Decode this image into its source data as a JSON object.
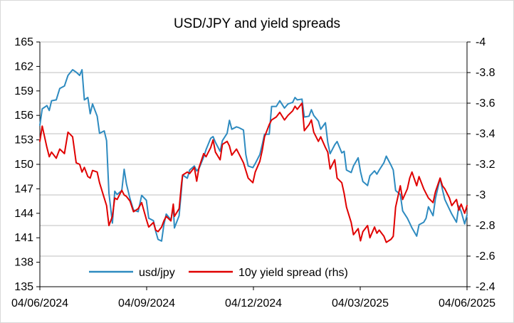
{
  "chart_data": {
    "type": "line",
    "title": "USD/JPY and yield spreads",
    "x_ticks": [
      "04/06/2024",
      "04/09/2024",
      "04/12/2024",
      "04/03/2025",
      "04/06/2025"
    ],
    "y_left": {
      "min": 135,
      "max": 165,
      "ticks": [
        "135",
        "138",
        "141",
        "144",
        "147",
        "150",
        "153",
        "156",
        "159",
        "162",
        "165"
      ]
    },
    "y_right": {
      "min": -4.0,
      "max": -2.4,
      "ticks": [
        "-4",
        "-3.8",
        "-3.6",
        "-3.4",
        "-3.2",
        "-3",
        "-2.8",
        "-2.6",
        "-2.4"
      ],
      "inverted": true
    },
    "grid": true,
    "legend_position": "bottom-inside",
    "series": [
      {
        "name": "usd/jpy",
        "axis": "left",
        "color": "#2e8bc0",
        "points": [
          [
            "2024-06-04",
            154.8
          ],
          [
            "2024-06-06",
            156.8
          ],
          [
            "2024-06-10",
            157.2
          ],
          [
            "2024-06-12",
            156.6
          ],
          [
            "2024-06-14",
            157.8
          ],
          [
            "2024-06-18",
            157.9
          ],
          [
            "2024-06-21",
            159.3
          ],
          [
            "2024-06-25",
            159.6
          ],
          [
            "2024-06-28",
            160.9
          ],
          [
            "2024-07-02",
            161.6
          ],
          [
            "2024-07-05",
            161.3
          ],
          [
            "2024-07-08",
            160.9
          ],
          [
            "2024-07-10",
            161.6
          ],
          [
            "2024-07-12",
            157.9
          ],
          [
            "2024-07-15",
            158.2
          ],
          [
            "2024-07-17",
            156.2
          ],
          [
            "2024-07-19",
            157.4
          ],
          [
            "2024-07-23",
            155.9
          ],
          [
            "2024-07-25",
            153.8
          ],
          [
            "2024-07-29",
            154.1
          ],
          [
            "2024-07-31",
            152.9
          ],
          [
            "2024-08-02",
            146.5
          ],
          [
            "2024-08-05",
            142.8
          ],
          [
            "2024-08-07",
            146.7
          ],
          [
            "2024-08-09",
            146.3
          ],
          [
            "2024-08-13",
            146.8
          ],
          [
            "2024-08-15",
            149.4
          ],
          [
            "2024-08-17",
            147.6
          ],
          [
            "2024-08-20",
            145.8
          ],
          [
            "2024-08-23",
            144.4
          ],
          [
            "2024-08-27",
            144.2
          ],
          [
            "2024-08-30",
            146.2
          ],
          [
            "2024-09-03",
            145.6
          ],
          [
            "2024-09-05",
            143.4
          ],
          [
            "2024-09-09",
            143.1
          ],
          [
            "2024-09-11",
            141.8
          ],
          [
            "2024-09-13",
            140.8
          ],
          [
            "2024-09-16",
            140.6
          ],
          [
            "2024-09-18",
            142.6
          ],
          [
            "2024-09-20",
            143.9
          ],
          [
            "2024-09-24",
            143.2
          ],
          [
            "2024-09-26",
            144.8
          ],
          [
            "2024-09-27",
            142.2
          ],
          [
            "2024-10-01",
            143.7
          ],
          [
            "2024-10-03",
            146.9
          ],
          [
            "2024-10-04",
            148.7
          ],
          [
            "2024-10-08",
            148.3
          ],
          [
            "2024-10-10",
            149.3
          ],
          [
            "2024-10-14",
            149.8
          ],
          [
            "2024-10-16",
            149.2
          ],
          [
            "2024-10-18",
            149.5
          ],
          [
            "2024-10-22",
            150.9
          ],
          [
            "2024-10-24",
            151.8
          ],
          [
            "2024-10-28",
            153.2
          ],
          [
            "2024-10-30",
            153.4
          ],
          [
            "2024-11-01",
            152.7
          ],
          [
            "2024-11-05",
            151.6
          ],
          [
            "2024-11-07",
            152.9
          ],
          [
            "2024-11-11",
            153.8
          ],
          [
            "2024-11-13",
            155.4
          ],
          [
            "2024-11-15",
            154.3
          ],
          [
            "2024-11-19",
            154.6
          ],
          [
            "2024-11-21",
            154.5
          ],
          [
            "2024-11-25",
            154.2
          ],
          [
            "2024-11-27",
            151.2
          ],
          [
            "2024-11-29",
            149.8
          ],
          [
            "2024-12-03",
            149.6
          ],
          [
            "2024-12-05",
            150.1
          ],
          [
            "2024-12-09",
            151.2
          ],
          [
            "2024-12-11",
            152.4
          ],
          [
            "2024-12-13",
            153.7
          ],
          [
            "2024-12-17",
            153.7
          ],
          [
            "2024-12-19",
            157.1
          ],
          [
            "2024-12-23",
            157.1
          ],
          [
            "2024-12-26",
            157.8
          ],
          [
            "2024-12-30",
            156.9
          ],
          [
            "2025-01-02",
            157.4
          ],
          [
            "2025-01-06",
            157.6
          ],
          [
            "2025-01-08",
            158.2
          ],
          [
            "2025-01-10",
            157.9
          ],
          [
            "2025-01-14",
            158.0
          ],
          [
            "2025-01-16",
            155.8
          ],
          [
            "2025-01-20",
            155.9
          ],
          [
            "2025-01-22",
            156.7
          ],
          [
            "2025-01-24",
            156.0
          ],
          [
            "2025-01-28",
            155.3
          ],
          [
            "2025-01-30",
            154.3
          ],
          [
            "2025-02-03",
            155.1
          ],
          [
            "2025-02-05",
            152.7
          ],
          [
            "2025-02-07",
            151.3
          ],
          [
            "2025-02-11",
            152.4
          ],
          [
            "2025-02-13",
            152.8
          ],
          [
            "2025-02-17",
            151.4
          ],
          [
            "2025-02-19",
            151.6
          ],
          [
            "2025-02-21",
            149.3
          ],
          [
            "2025-02-25",
            149.0
          ],
          [
            "2025-02-27",
            149.8
          ],
          [
            "2025-03-03",
            150.8
          ],
          [
            "2025-03-05",
            149.1
          ],
          [
            "2025-03-07",
            147.9
          ],
          [
            "2025-03-11",
            147.4
          ],
          [
            "2025-03-13",
            148.6
          ],
          [
            "2025-03-17",
            149.2
          ],
          [
            "2025-03-19",
            148.8
          ],
          [
            "2025-03-21",
            149.3
          ],
          [
            "2025-03-25",
            150.2
          ],
          [
            "2025-03-27",
            151.0
          ],
          [
            "2025-03-31",
            149.9
          ],
          [
            "2025-04-02",
            149.3
          ],
          [
            "2025-04-04",
            146.8
          ],
          [
            "2025-04-08",
            146.3
          ],
          [
            "2025-04-10",
            144.3
          ],
          [
            "2025-04-14",
            143.4
          ],
          [
            "2025-04-16",
            142.8
          ],
          [
            "2025-04-18",
            142.2
          ],
          [
            "2025-04-22",
            141.2
          ],
          [
            "2025-04-24",
            142.6
          ],
          [
            "2025-04-28",
            142.9
          ],
          [
            "2025-04-30",
            143.4
          ],
          [
            "2025-05-02",
            144.8
          ],
          [
            "2025-05-06",
            143.7
          ],
          [
            "2025-05-08",
            145.8
          ],
          [
            "2025-05-12",
            148.3
          ],
          [
            "2025-05-14",
            146.9
          ],
          [
            "2025-05-16",
            145.7
          ],
          [
            "2025-05-20",
            144.5
          ],
          [
            "2025-05-22",
            143.9
          ],
          [
            "2025-05-26",
            142.9
          ],
          [
            "2025-05-28",
            144.9
          ],
          [
            "2025-05-30",
            144.2
          ],
          [
            "2025-06-02",
            142.7
          ],
          [
            "2025-06-04",
            143.8
          ]
        ]
      },
      {
        "name": "10y yield spread (rhs)",
        "axis": "right",
        "color": "#e00000",
        "points": [
          [
            "2024-06-04",
            -3.35
          ],
          [
            "2024-06-06",
            -3.45
          ],
          [
            "2024-06-10",
            -3.31
          ],
          [
            "2024-06-12",
            -3.25
          ],
          [
            "2024-06-14",
            -3.28
          ],
          [
            "2024-06-18",
            -3.24
          ],
          [
            "2024-06-21",
            -3.3
          ],
          [
            "2024-06-25",
            -3.27
          ],
          [
            "2024-06-28",
            -3.41
          ],
          [
            "2024-07-02",
            -3.38
          ],
          [
            "2024-07-05",
            -3.21
          ],
          [
            "2024-07-08",
            -3.2
          ],
          [
            "2024-07-10",
            -3.15
          ],
          [
            "2024-07-12",
            -3.18
          ],
          [
            "2024-07-15",
            -3.12
          ],
          [
            "2024-07-17",
            -3.11
          ],
          [
            "2024-07-19",
            -3.16
          ],
          [
            "2024-07-23",
            -3.15
          ],
          [
            "2024-07-25",
            -3.08
          ],
          [
            "2024-07-29",
            -2.98
          ],
          [
            "2024-07-31",
            -2.93
          ],
          [
            "2024-08-02",
            -2.8
          ],
          [
            "2024-08-05",
            -2.86
          ],
          [
            "2024-08-07",
            -2.98
          ],
          [
            "2024-08-09",
            -2.97
          ],
          [
            "2024-08-13",
            -3.03
          ],
          [
            "2024-08-15",
            -3.0
          ],
          [
            "2024-08-17",
            -2.99
          ],
          [
            "2024-08-20",
            -2.96
          ],
          [
            "2024-08-23",
            -2.89
          ],
          [
            "2024-08-27",
            -2.91
          ],
          [
            "2024-08-30",
            -2.95
          ],
          [
            "2024-09-03",
            -2.84
          ],
          [
            "2024-09-05",
            -2.79
          ],
          [
            "2024-09-09",
            -2.82
          ],
          [
            "2024-09-11",
            -2.77
          ],
          [
            "2024-09-13",
            -2.76
          ],
          [
            "2024-09-16",
            -2.79
          ],
          [
            "2024-09-18",
            -2.83
          ],
          [
            "2024-09-20",
            -2.86
          ],
          [
            "2024-09-24",
            -2.83
          ],
          [
            "2024-09-26",
            -2.94
          ],
          [
            "2024-09-27",
            -2.86
          ],
          [
            "2024-10-01",
            -2.91
          ],
          [
            "2024-10-03",
            -3.07
          ],
          [
            "2024-10-04",
            -3.13
          ],
          [
            "2024-10-08",
            -3.15
          ],
          [
            "2024-10-10",
            -3.14
          ],
          [
            "2024-10-14",
            -3.18
          ],
          [
            "2024-10-16",
            -3.09
          ],
          [
            "2024-10-18",
            -3.18
          ],
          [
            "2024-10-22",
            -3.27
          ],
          [
            "2024-10-24",
            -3.25
          ],
          [
            "2024-10-28",
            -3.31
          ],
          [
            "2024-10-30",
            -3.36
          ],
          [
            "2024-11-01",
            -3.28
          ],
          [
            "2024-11-05",
            -3.23
          ],
          [
            "2024-11-07",
            -3.33
          ],
          [
            "2024-11-11",
            -3.35
          ],
          [
            "2024-11-13",
            -3.32
          ],
          [
            "2024-11-15",
            -3.26
          ],
          [
            "2024-11-19",
            -3.3
          ],
          [
            "2024-11-21",
            -3.27
          ],
          [
            "2024-11-25",
            -3.21
          ],
          [
            "2024-11-27",
            -3.16
          ],
          [
            "2024-11-29",
            -3.11
          ],
          [
            "2024-12-03",
            -3.08
          ],
          [
            "2024-12-05",
            -3.15
          ],
          [
            "2024-12-09",
            -3.22
          ],
          [
            "2024-12-11",
            -3.29
          ],
          [
            "2024-12-13",
            -3.38
          ],
          [
            "2024-12-17",
            -3.46
          ],
          [
            "2024-12-19",
            -3.49
          ],
          [
            "2024-12-23",
            -3.51
          ],
          [
            "2024-12-26",
            -3.54
          ],
          [
            "2024-12-30",
            -3.49
          ],
          [
            "2025-01-02",
            -3.52
          ],
          [
            "2025-01-06",
            -3.55
          ],
          [
            "2025-01-08",
            -3.58
          ],
          [
            "2025-01-10",
            -3.56
          ],
          [
            "2025-01-14",
            -3.6
          ],
          [
            "2025-01-16",
            -3.42
          ],
          [
            "2025-01-20",
            -3.46
          ],
          [
            "2025-01-22",
            -3.49
          ],
          [
            "2025-01-24",
            -3.41
          ],
          [
            "2025-01-28",
            -3.35
          ],
          [
            "2025-01-30",
            -3.38
          ],
          [
            "2025-02-03",
            -3.31
          ],
          [
            "2025-02-05",
            -3.28
          ],
          [
            "2025-02-07",
            -3.17
          ],
          [
            "2025-02-11",
            -3.23
          ],
          [
            "2025-02-13",
            -3.11
          ],
          [
            "2025-02-17",
            -3.08
          ],
          [
            "2025-02-19",
            -3.01
          ],
          [
            "2025-02-21",
            -2.92
          ],
          [
            "2025-02-25",
            -2.82
          ],
          [
            "2025-02-27",
            -2.74
          ],
          [
            "2025-03-03",
            -2.78
          ],
          [
            "2025-03-05",
            -2.7
          ],
          [
            "2025-03-07",
            -2.76
          ],
          [
            "2025-03-11",
            -2.8
          ],
          [
            "2025-03-13",
            -2.72
          ],
          [
            "2025-03-17",
            -2.79
          ],
          [
            "2025-03-19",
            -2.75
          ],
          [
            "2025-03-21",
            -2.77
          ],
          [
            "2025-03-25",
            -2.73
          ],
          [
            "2025-03-27",
            -2.69
          ],
          [
            "2025-03-31",
            -2.71
          ],
          [
            "2025-04-02",
            -2.73
          ],
          [
            "2025-04-04",
            -2.92
          ],
          [
            "2025-04-08",
            -3.06
          ],
          [
            "2025-04-10",
            -2.97
          ],
          [
            "2025-04-14",
            -3.04
          ],
          [
            "2025-04-16",
            -3.11
          ],
          [
            "2025-04-18",
            -3.15
          ],
          [
            "2025-04-22",
            -3.06
          ],
          [
            "2025-04-24",
            -3.12
          ],
          [
            "2025-04-28",
            -3.04
          ],
          [
            "2025-04-30",
            -3.01
          ],
          [
            "2025-05-02",
            -2.98
          ],
          [
            "2025-05-06",
            -2.95
          ],
          [
            "2025-05-08",
            -3.02
          ],
          [
            "2025-05-12",
            -3.11
          ],
          [
            "2025-05-14",
            -3.06
          ],
          [
            "2025-05-16",
            -3.04
          ],
          [
            "2025-05-20",
            -2.98
          ],
          [
            "2025-05-22",
            -2.93
          ],
          [
            "2025-05-26",
            -2.97
          ],
          [
            "2025-05-28",
            -2.9
          ],
          [
            "2025-05-30",
            -2.94
          ],
          [
            "2025-06-02",
            -2.88
          ],
          [
            "2025-06-04",
            -2.93
          ]
        ]
      }
    ]
  }
}
